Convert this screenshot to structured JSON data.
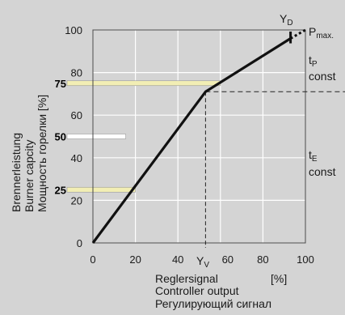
{
  "chart_data": {
    "type": "line",
    "title": "",
    "x": [
      0,
      53,
      93
    ],
    "y": [
      0,
      71,
      96
    ],
    "dashed_segment": {
      "x": [
        93,
        100
      ],
      "y": [
        96,
        100
      ]
    },
    "xlim": [
      0,
      100
    ],
    "ylim": [
      0,
      100
    ],
    "x_ticks": [
      "0",
      "20",
      "40",
      "60",
      "80",
      "100"
    ],
    "y_ticks": [
      "0",
      "20",
      "40",
      "60",
      "80",
      "100"
    ],
    "grid": true,
    "xlabel_lines": [
      "Reglersignal",
      "Controller output",
      "Регулирующий сигнал"
    ],
    "x_unit": "[%]",
    "ylabel_lines": [
      "Brennerleistung",
      "Burner capcity",
      "Мощность горелки [%]"
    ],
    "highlight_levels": [
      {
        "value": 25,
        "label": "25",
        "color": "#f2eeb4"
      },
      {
        "value": 50,
        "label": "50",
        "color": "#ffffff"
      },
      {
        "value": 75,
        "label": "75",
        "color": "#f2eeb4"
      }
    ],
    "yv": {
      "x": 53,
      "y": 71,
      "label_main": "Y",
      "label_sub": "V"
    },
    "yd": {
      "label_main": "Y",
      "label_sub": "D"
    },
    "pmax": {
      "label_main": "P",
      "label_sub": "max."
    },
    "tp": {
      "label_main": "t",
      "label_sub": "P",
      "line2": "const"
    },
    "te": {
      "label_main": "t",
      "label_sub": "E",
      "line2": "const"
    },
    "colors": {
      "curve": "#111111",
      "grid": "#ffffff",
      "axis": "#444444"
    }
  }
}
